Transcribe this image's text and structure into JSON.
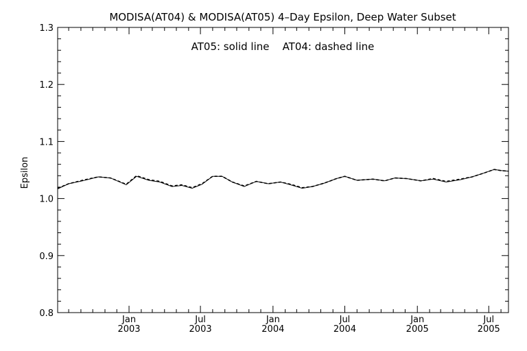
{
  "chart_data": {
    "type": "line",
    "title": "MODISA(AT04) & MODISA(AT05) 4–Day Epsilon, Deep Water Subset",
    "annotation": "AT05: solid line    AT04: dashed line",
    "xlabel": "",
    "ylabel": "Epsilon",
    "ylim": [
      0.8,
      1.3
    ],
    "xlim": [
      "2002-07-04",
      "2005-08-20"
    ],
    "yticks": [
      0.8,
      0.9,
      1.0,
      1.1,
      1.2,
      1.3
    ],
    "ytick_labels": [
      "0.8",
      "0.9",
      "1.0",
      "1.1",
      "1.2",
      "1.3"
    ],
    "xticks": [
      {
        "date": "2003-01-01",
        "label": [
          "Jan",
          "2003"
        ]
      },
      {
        "date": "2003-07-01",
        "label": [
          "Jul",
          "2003"
        ]
      },
      {
        "date": "2004-01-01",
        "label": [
          "Jan",
          "2004"
        ]
      },
      {
        "date": "2004-07-01",
        "label": [
          "Jul",
          "2004"
        ]
      },
      {
        "date": "2005-01-01",
        "label": [
          "Jan",
          "2005"
        ]
      },
      {
        "date": "2005-07-01",
        "label": [
          "Jul",
          "2005"
        ]
      }
    ],
    "grid": false,
    "series": [
      {
        "name": "AT05",
        "style": "solid",
        "color": "#000000",
        "x": [
          "2002-07-04",
          "2002-08-01",
          "2002-09-05",
          "2002-10-15",
          "2002-11-15",
          "2002-12-25",
          "2003-01-20",
          "2003-02-20",
          "2003-03-20",
          "2003-04-20",
          "2003-05-15",
          "2003-06-10",
          "2003-07-05",
          "2003-08-01",
          "2003-08-25",
          "2003-09-20",
          "2003-10-20",
          "2003-11-20",
          "2003-12-20",
          "2004-01-20",
          "2004-02-15",
          "2004-03-15",
          "2004-04-10",
          "2004-05-10",
          "2004-06-10",
          "2004-07-01",
          "2004-08-01",
          "2004-09-10",
          "2004-10-10",
          "2004-11-05",
          "2004-12-05",
          "2005-01-10",
          "2005-02-10",
          "2005-03-15",
          "2005-04-20",
          "2005-05-20",
          "2005-06-20",
          "2005-07-15",
          "2005-08-01",
          "2005-08-20"
        ],
        "y": [
          1.017,
          1.026,
          1.031,
          1.038,
          1.036,
          1.024,
          1.039,
          1.032,
          1.029,
          1.021,
          1.023,
          1.018,
          1.025,
          1.039,
          1.039,
          1.029,
          1.021,
          1.03,
          1.026,
          1.029,
          1.024,
          1.018,
          1.021,
          1.027,
          1.035,
          1.039,
          1.032,
          1.034,
          1.031,
          1.036,
          1.035,
          1.031,
          1.034,
          1.029,
          1.033,
          1.038,
          1.045,
          1.051,
          1.049,
          1.048
        ]
      },
      {
        "name": "AT04",
        "style": "dashed",
        "color": "#000000",
        "x": [
          "2002-07-04",
          "2002-08-01",
          "2002-09-05",
          "2002-10-15",
          "2002-11-15",
          "2002-12-25",
          "2003-01-20",
          "2003-02-20",
          "2003-03-20",
          "2003-04-20",
          "2003-05-15",
          "2003-06-10",
          "2003-07-05",
          "2003-08-01",
          "2003-08-25",
          "2003-09-20",
          "2003-10-20",
          "2003-11-20",
          "2003-12-20",
          "2004-01-20",
          "2004-02-15",
          "2004-03-15",
          "2004-04-10",
          "2004-05-10",
          "2004-06-10",
          "2004-07-01",
          "2004-08-01",
          "2004-09-10",
          "2004-10-10",
          "2004-11-05",
          "2004-12-05",
          "2005-01-10",
          "2005-02-10",
          "2005-03-15",
          "2005-04-20",
          "2005-05-20",
          "2005-06-20",
          "2005-07-15",
          "2005-08-01",
          "2005-08-20"
        ],
        "y": [
          1.018,
          1.026,
          1.032,
          1.038,
          1.036,
          1.025,
          1.04,
          1.033,
          1.03,
          1.022,
          1.024,
          1.019,
          1.026,
          1.039,
          1.039,
          1.029,
          1.022,
          1.03,
          1.026,
          1.029,
          1.025,
          1.019,
          1.021,
          1.027,
          1.035,
          1.039,
          1.032,
          1.034,
          1.031,
          1.036,
          1.035,
          1.031,
          1.035,
          1.03,
          1.034,
          1.038,
          1.045,
          1.051,
          1.049,
          1.048
        ]
      }
    ]
  }
}
